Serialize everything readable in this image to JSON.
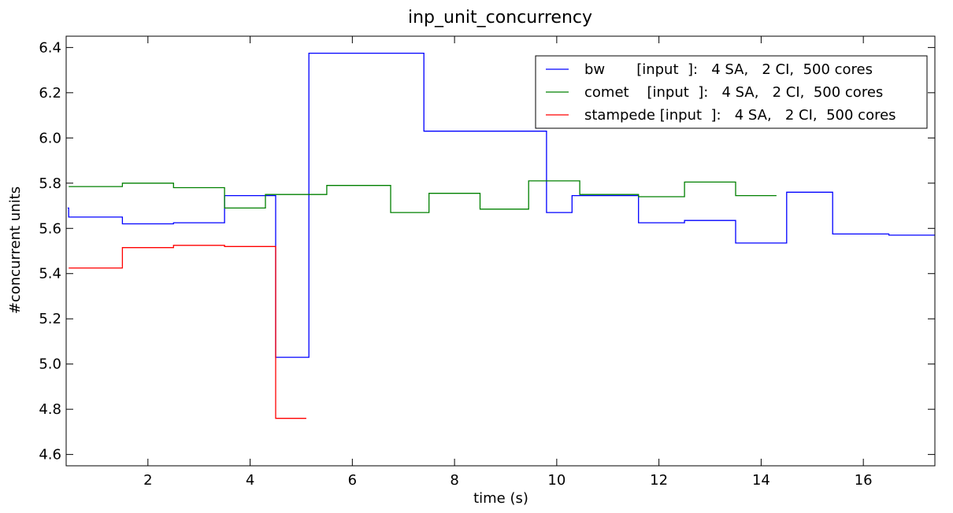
{
  "chart_data": {
    "type": "line",
    "step": true,
    "title": "inp_unit_concurrency",
    "xlabel": "time (s)",
    "ylabel": "#concurrent units",
    "xlim": [
      0.4,
      17.4
    ],
    "ylim": [
      4.55,
      6.45
    ],
    "xticks": [
      2,
      4,
      6,
      8,
      10,
      12,
      14,
      16
    ],
    "yticks": [
      4.6,
      4.8,
      5.0,
      5.2,
      5.4,
      5.6,
      5.8,
      6.0,
      6.2,
      6.4
    ],
    "xtick_labels": [
      "2",
      "4",
      "6",
      "8",
      "10",
      "12",
      "14",
      "16"
    ],
    "ytick_labels": [
      "4.6",
      "4.8",
      "5.0",
      "5.2",
      "5.4",
      "5.6",
      "5.8",
      "6.0",
      "6.2",
      "6.4"
    ],
    "grid": false,
    "legend_position": "top-right",
    "series": [
      {
        "name": "bw       [input  ]:   4 SA,   2 CI,  500 cores",
        "color": "#0000ff",
        "x": [
          0.43,
          0.45,
          1.5,
          2.5,
          3.5,
          4.5,
          5.15,
          7.4,
          9.8,
          10.3,
          11.6,
          12.5,
          13.5,
          14.5,
          15.4,
          16.5,
          17.4
        ],
        "y": [
          5.69,
          5.65,
          5.62,
          5.625,
          5.745,
          5.03,
          6.375,
          6.03,
          5.67,
          5.745,
          5.625,
          5.635,
          5.535,
          5.76,
          5.575,
          5.57,
          5.57
        ]
      },
      {
        "name": "comet    [input  ]:   4 SA,   2 CI,  500 cores",
        "color": "#008000",
        "x": [
          0.45,
          1.5,
          2.5,
          3.5,
          4.3,
          5.5,
          6.75,
          7.5,
          8.5,
          9.45,
          10.45,
          11.6,
          12.5,
          13.5,
          14.3
        ],
        "y": [
          5.785,
          5.8,
          5.78,
          5.69,
          5.75,
          5.79,
          5.67,
          5.755,
          5.685,
          5.81,
          5.75,
          5.74,
          5.805,
          5.745,
          5.745
        ]
      },
      {
        "name": "stampede [input  ]:   4 SA,   2 CI,  500 cores",
        "color": "#ff0000",
        "x": [
          0.45,
          1.5,
          2.5,
          3.5,
          4.5,
          5.1
        ],
        "y": [
          5.425,
          5.515,
          5.525,
          5.52,
          4.76,
          4.76
        ]
      }
    ]
  }
}
